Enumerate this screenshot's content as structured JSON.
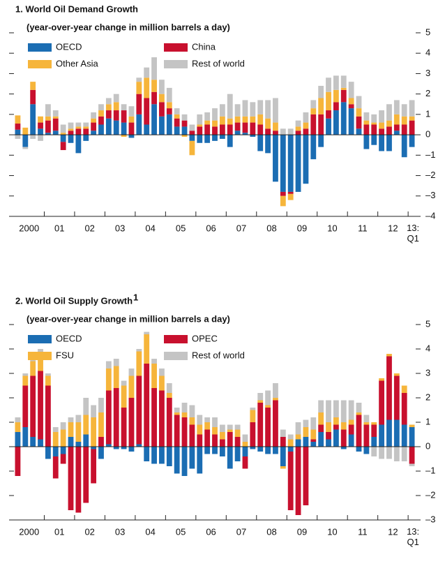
{
  "chart_data": [
    {
      "type": "stacked_bar",
      "title": "1. World Oil Demand Growth",
      "subtitle": "(year-over-year change in million barrels a day)",
      "categories": [
        "2000",
        null,
        null,
        null,
        "01",
        null,
        null,
        null,
        "02",
        null,
        null,
        null,
        "03",
        null,
        null,
        null,
        "04",
        null,
        null,
        null,
        "05",
        null,
        null,
        null,
        "06",
        null,
        null,
        null,
        "07",
        null,
        null,
        null,
        "08",
        null,
        null,
        null,
        "09",
        null,
        null,
        null,
        "10",
        null,
        null,
        null,
        "11",
        null,
        null,
        null,
        "12",
        null,
        null,
        null,
        "13: Q1"
      ],
      "series": [
        {
          "name": "OECD",
          "color": "#1b6db3",
          "values": [
            0.25,
            -0.6,
            1.5,
            0.3,
            0.1,
            0.2,
            -0.35,
            -0.4,
            -0.9,
            -0.3,
            0.2,
            0.5,
            0.8,
            0.7,
            0.6,
            -0.15,
            1.0,
            0.5,
            1.5,
            0.9,
            1.0,
            0.4,
            0.4,
            -0.3,
            -0.4,
            -0.4,
            -0.3,
            -0.2,
            -0.6,
            0.2,
            0.1,
            -0.1,
            -0.8,
            -0.9,
            -2.3,
            -2.8,
            -2.8,
            -2.8,
            -2.4,
            -1.2,
            -0.6,
            0.8,
            1.2,
            1.6,
            1.3,
            0.3,
            -0.7,
            -0.5,
            -0.8,
            -0.8,
            0.2,
            -1.1,
            -0.6
          ]
        },
        {
          "name": "China",
          "color": "#c8102e",
          "values": [
            0.3,
            0,
            0.7,
            0.3,
            0.6,
            0.6,
            -0.4,
            0.2,
            0.3,
            0.3,
            0.4,
            0.4,
            0.4,
            0.5,
            0.6,
            0.6,
            1.0,
            1.3,
            0.6,
            0.7,
            0.3,
            0.4,
            0.3,
            0.2,
            0.4,
            0.5,
            0.4,
            0.5,
            0.5,
            0.4,
            0.5,
            0.6,
            0.5,
            0.3,
            0.2,
            -0.2,
            -0.1,
            0.2,
            0.3,
            1.0,
            1.0,
            0.4,
            0.4,
            0.6,
            0.2,
            0.6,
            0.5,
            0.5,
            0.3,
            0.4,
            0.3,
            0.5,
            0.7
          ]
        },
        {
          "name": "Other Asia",
          "color": "#f6b53b",
          "values": [
            0.4,
            0.35,
            0.4,
            0.3,
            0.2,
            0.1,
            0.1,
            0.1,
            0.1,
            0.1,
            0.2,
            0.3,
            0.3,
            0.4,
            -0.1,
            0.3,
            0.6,
            1.0,
            0.6,
            0.4,
            0.3,
            0.2,
            -0.1,
            -0.7,
            0.1,
            0.2,
            0.3,
            0.4,
            0.3,
            0.3,
            0.3,
            0.3,
            0.5,
            0.5,
            0.4,
            -0.5,
            -0.3,
            0.2,
            0.3,
            0.3,
            0.8,
            0.9,
            0.6,
            0.1,
            0.3,
            0.4,
            0.2,
            0.1,
            0.3,
            0.3,
            0.5,
            0.4,
            0.2
          ]
        },
        {
          "name": "Rest of world",
          "color": "#c4c4c4",
          "values": [
            -0.2,
            -0.1,
            -0.2,
            -0.3,
            0.6,
            0.3,
            0.4,
            0.3,
            0.2,
            0.2,
            0.3,
            0.3,
            0.3,
            0.4,
            0.3,
            0.5,
            0.2,
            0.5,
            1.1,
            0.7,
            0.7,
            0.3,
            0.3,
            0.3,
            0.5,
            0.4,
            0.6,
            0.6,
            1.2,
            0.6,
            0.8,
            0.7,
            0.7,
            0.9,
            1.2,
            0.3,
            0.3,
            0.3,
            0.5,
            0.4,
            0.6,
            0.7,
            0.7,
            0.6,
            0.8,
            0.6,
            0.4,
            0.4,
            0.6,
            0.8,
            0.7,
            0.6,
            0.8
          ]
        }
      ],
      "ylim": [
        -4,
        5
      ],
      "yticks": [
        {
          "value": -4,
          "label": "–4"
        },
        {
          "value": -3,
          "label": "–3"
        },
        {
          "value": -2,
          "label": "–2"
        },
        {
          "value": -1,
          "label": "–1"
        },
        0,
        1,
        2,
        3,
        4,
        5
      ]
    },
    {
      "type": "stacked_bar",
      "title": "2. World Oil Supply Growth",
      "title_note": "1",
      "subtitle": "(year-over-year change in million barrels a day)",
      "categories": [
        "2000",
        null,
        null,
        null,
        "01",
        null,
        null,
        null,
        "02",
        null,
        null,
        null,
        "03",
        null,
        null,
        null,
        "04",
        null,
        null,
        null,
        "05",
        null,
        null,
        null,
        "06",
        null,
        null,
        null,
        "07",
        null,
        null,
        null,
        "08",
        null,
        null,
        null,
        "09",
        null,
        null,
        null,
        "10",
        null,
        null,
        null,
        "11",
        null,
        null,
        null,
        "12",
        null,
        null,
        null,
        "13: Q1"
      ],
      "series": [
        {
          "name": "OECD",
          "color": "#1b6db3",
          "values": [
            0.6,
            0.8,
            0.4,
            0.3,
            -0.5,
            -0.4,
            -0.3,
            0.4,
            0.2,
            0.5,
            -0.1,
            -0.5,
            0.1,
            -0.1,
            -0.1,
            -0.2,
            0.1,
            -0.6,
            -0.7,
            -0.7,
            -0.8,
            -1.1,
            -1.2,
            -0.9,
            -1.1,
            -0.3,
            -0.3,
            -0.4,
            -0.9,
            -0.6,
            -0.4,
            -0.1,
            -0.2,
            -0.3,
            -0.3,
            -0.8,
            -0.2,
            0.3,
            0.4,
            0.2,
            0.6,
            0.3,
            0.7,
            -0.1,
            0.5,
            -0.2,
            -0.3,
            0.4,
            0.9,
            1.1,
            1.1,
            0.9,
            0.8
          ]
        },
        {
          "name": "OPEC",
          "color": "#c8102e",
          "values": [
            -1.2,
            1.7,
            2.5,
            2.8,
            2.5,
            -0.9,
            -0.4,
            -2.6,
            -2.7,
            -2.3,
            -1.4,
            0.4,
            2.2,
            2.4,
            1.6,
            2.0,
            2.8,
            3.4,
            2.4,
            2.3,
            2.0,
            1.3,
            1.2,
            0.9,
            0.5,
            0.7,
            0.5,
            0.3,
            0.6,
            0.4,
            -0.5,
            1.0,
            1.8,
            1.6,
            1.9,
            0.4,
            -2.4,
            -2.8,
            -2.4,
            0.1,
            0.3,
            0.3,
            0.2,
            0.7,
            0.4,
            1.3,
            0.9,
            0.5,
            1.8,
            2.6,
            1.8,
            1.3,
            -0.7
          ]
        },
        {
          "name": "FSU",
          "color": "#f6b53b",
          "values": [
            0.4,
            0.4,
            0.6,
            0.7,
            0.4,
            0.6,
            0.7,
            0.6,
            0.8,
            0.8,
            1.2,
            1.0,
            0.9,
            0.9,
            0.9,
            0.9,
            1.0,
            1.2,
            1.0,
            0.6,
            0.2,
            0.1,
            0.2,
            0.3,
            0.4,
            0.3,
            0.3,
            0.3,
            0.1,
            0.3,
            0.2,
            0.5,
            0.1,
            0.1,
            0.1,
            -0.1,
            0.3,
            0.2,
            0.4,
            0.4,
            0.5,
            0.4,
            0.3,
            0.3,
            0.2,
            0.1,
            0.1,
            0.1,
            0.1,
            0.1,
            0.1,
            0.3,
            0.1
          ]
        },
        {
          "name": "Rest of world",
          "color": "#c4c4c4",
          "values": [
            0.2,
            0.1,
            0.1,
            0.2,
            0.1,
            0.2,
            0.3,
            0.2,
            0.3,
            0.7,
            0.5,
            0.6,
            0.3,
            0.3,
            0.2,
            0.3,
            0.1,
            0.1,
            0.2,
            0.3,
            0.4,
            0.2,
            0.4,
            0.5,
            0.4,
            0.2,
            0.4,
            0.3,
            0.2,
            0.2,
            0.3,
            0.1,
            0.3,
            0.6,
            0.6,
            0.3,
            0.2,
            0.5,
            0.3,
            0.5,
            0.5,
            0.9,
            0.7,
            0.9,
            0.8,
            0.4,
            0.3,
            -0.4,
            -0.5,
            -0.5,
            -0.6,
            -0.6,
            -0.1
          ]
        }
      ],
      "ylim": [
        -3,
        5
      ],
      "yticks": [
        {
          "value": -3,
          "label": "–3"
        },
        {
          "value": -2,
          "label": "–2"
        },
        {
          "value": -1,
          "label": "–1"
        },
        0,
        1,
        2,
        3,
        4,
        5
      ]
    }
  ]
}
